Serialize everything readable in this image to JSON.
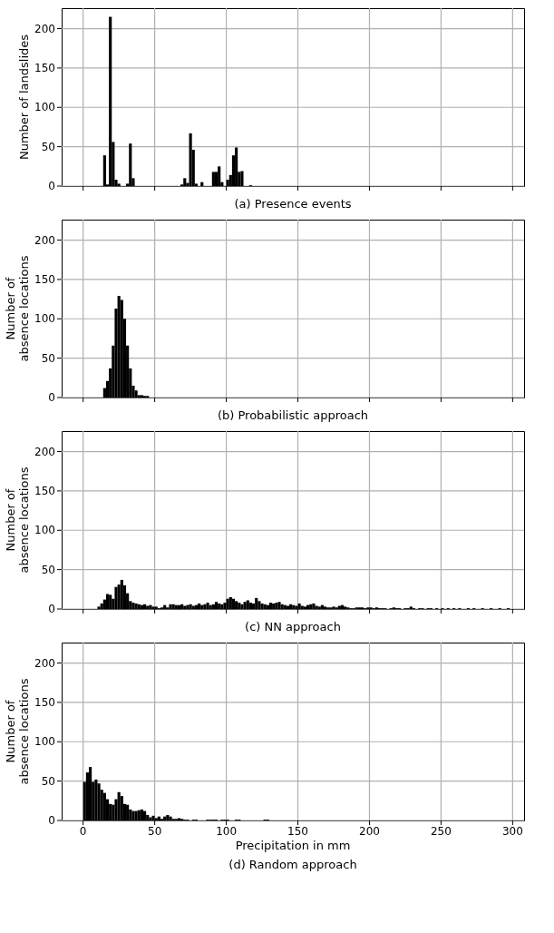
{
  "chart_data": [
    {
      "type": "histogram",
      "title": "(a) Presence events",
      "ylabel": "Number of landslides",
      "color": "#000000",
      "xlim": [
        -15,
        308
      ],
      "xticks": [
        0,
        50,
        100,
        150,
        200,
        250,
        300
      ],
      "ylim": [
        0,
        226
      ],
      "yticks": [
        0,
        50,
        100,
        150,
        200
      ],
      "grid": true,
      "tick_labels": "y",
      "bins": [
        14,
        16,
        18,
        20,
        22,
        24,
        26,
        28,
        30,
        32,
        34,
        36,
        38,
        40,
        42,
        44,
        46,
        48,
        50,
        52,
        54,
        56,
        58,
        60,
        62,
        64,
        66,
        68,
        70,
        72,
        74,
        76,
        78,
        80,
        82,
        84,
        86,
        88,
        90,
        92,
        94,
        96,
        98,
        100,
        102,
        104,
        106,
        108,
        110,
        112,
        114,
        116,
        118,
        120
      ],
      "values": [
        39,
        2,
        215,
        56,
        8,
        3,
        0,
        0,
        3,
        54,
        10,
        0,
        0,
        0,
        0,
        0,
        0,
        0,
        0,
        0,
        0,
        0,
        0,
        0,
        0,
        0,
        0,
        2,
        10,
        4,
        67,
        46,
        3,
        0,
        5,
        0,
        0,
        0,
        18,
        18,
        25,
        5,
        0,
        8,
        14,
        39,
        49,
        18,
        19,
        0,
        0,
        1,
        0
      ]
    },
    {
      "type": "histogram",
      "title": "(b) Probabilistic approach",
      "ylabel": "Number of\nabsence locations",
      "color": "#000000",
      "xlim": [
        -15,
        308
      ],
      "xticks": [
        0,
        50,
        100,
        150,
        200,
        250,
        300
      ],
      "ylim": [
        0,
        226
      ],
      "yticks": [
        0,
        50,
        100,
        150,
        200
      ],
      "grid": true,
      "tick_labels": "y",
      "bins": [
        14,
        16,
        18,
        20,
        22,
        24,
        26,
        28,
        30,
        32,
        34,
        36,
        38,
        40,
        42,
        44,
        46
      ],
      "values": [
        12,
        21,
        37,
        66,
        113,
        129,
        124,
        100,
        66,
        37,
        15,
        9,
        3,
        3,
        2,
        2
      ]
    },
    {
      "type": "histogram",
      "title": "(c) NN approach",
      "ylabel": "Number of\nabsence locations",
      "color": "#000000",
      "xlim": [
        -15,
        308
      ],
      "xticks": [
        0,
        50,
        100,
        150,
        200,
        250,
        300
      ],
      "ylim": [
        0,
        226
      ],
      "yticks": [
        0,
        50,
        100,
        150,
        200
      ],
      "grid": true,
      "tick_labels": "y",
      "bins": [
        10,
        12,
        14,
        16,
        18,
        20,
        22,
        24,
        26,
        28,
        30,
        32,
        34,
        36,
        38,
        40,
        42,
        44,
        46,
        48,
        50,
        52,
        54,
        56,
        58,
        60,
        62,
        64,
        66,
        68,
        70,
        72,
        74,
        76,
        78,
        80,
        82,
        84,
        86,
        88,
        90,
        92,
        94,
        96,
        98,
        100,
        102,
        104,
        106,
        108,
        110,
        112,
        114,
        116,
        118,
        120,
        122,
        124,
        126,
        128,
        130,
        132,
        134,
        136,
        138,
        140,
        142,
        144,
        146,
        148,
        150,
        152,
        154,
        156,
        158,
        160,
        162,
        164,
        166,
        168,
        170,
        172,
        174,
        176,
        178,
        180,
        182,
        184,
        186,
        188,
        190,
        192,
        194,
        196,
        198,
        200,
        202,
        204,
        206,
        208,
        210,
        212,
        214,
        216,
        218,
        220,
        222,
        224,
        226,
        228,
        230,
        232,
        234,
        236,
        238,
        240,
        242,
        244,
        246,
        248,
        250,
        252,
        254,
        256,
        258,
        260,
        262,
        264,
        266,
        268,
        270,
        272,
        274,
        276,
        278,
        280,
        282,
        284,
        286,
        288,
        290,
        292,
        294,
        296,
        298,
        300
      ],
      "values": [
        3,
        7,
        12,
        19,
        18,
        13,
        28,
        31,
        37,
        30,
        20,
        10,
        8,
        7,
        6,
        5,
        6,
        4,
        5,
        3,
        3,
        1,
        2,
        5,
        2,
        6,
        6,
        5,
        5,
        6,
        4,
        5,
        6,
        4,
        5,
        7,
        5,
        6,
        8,
        5,
        6,
        9,
        7,
        6,
        8,
        13,
        15,
        13,
        10,
        8,
        6,
        9,
        11,
        8,
        7,
        14,
        10,
        7,
        6,
        5,
        8,
        7,
        8,
        9,
        6,
        5,
        4,
        6,
        5,
        4,
        7,
        4,
        3,
        5,
        6,
        7,
        4,
        3,
        5,
        3,
        2,
        2,
        3,
        2,
        4,
        5,
        3,
        2,
        1,
        1,
        2,
        2,
        2,
        1,
        2,
        2,
        1,
        2,
        1,
        1,
        1,
        0,
        1,
        2,
        1,
        1,
        0,
        1,
        1,
        3,
        1,
        0,
        1,
        1,
        0,
        1,
        1,
        0,
        1,
        0,
        1,
        0,
        1,
        0,
        1,
        0,
        1,
        0,
        0,
        1,
        0,
        1,
        0,
        0,
        1,
        0,
        0,
        1,
        0,
        0,
        1,
        0,
        0,
        1,
        0
      ]
    },
    {
      "type": "histogram",
      "title": "(d) Random approach",
      "xlabel": "Precipitation in mm",
      "ylabel": "Number of\nabsence locations",
      "color": "#000000",
      "xlim": [
        -15,
        308
      ],
      "xticks": [
        0,
        50,
        100,
        150,
        200,
        250,
        300
      ],
      "ylim": [
        0,
        226
      ],
      "yticks": [
        0,
        50,
        100,
        150,
        200
      ],
      "grid": true,
      "bins": [
        0,
        2,
        4,
        6,
        8,
        10,
        12,
        14,
        16,
        18,
        20,
        22,
        24,
        26,
        28,
        30,
        32,
        34,
        36,
        38,
        40,
        42,
        44,
        46,
        48,
        50,
        52,
        54,
        56,
        58,
        60,
        62,
        64,
        66,
        68,
        70,
        72,
        74,
        76,
        78,
        80,
        82,
        84,
        86,
        88,
        90,
        92,
        94,
        96,
        98,
        100,
        102,
        104,
        106,
        108,
        110,
        112,
        114,
        116,
        118,
        120,
        122,
        124,
        126,
        128,
        130,
        132,
        134,
        136,
        138,
        140
      ],
      "values": [
        49,
        61,
        68,
        49,
        52,
        47,
        39,
        35,
        27,
        21,
        20,
        27,
        36,
        31,
        21,
        20,
        14,
        12,
        12,
        13,
        14,
        12,
        7,
        4,
        6,
        3,
        5,
        2,
        5,
        7,
        5,
        2,
        2,
        3,
        2,
        1,
        1,
        0,
        1,
        1,
        0,
        0,
        0,
        1,
        1,
        1,
        1,
        0,
        1,
        1,
        1,
        0,
        0,
        1,
        1,
        0,
        0,
        0,
        0,
        0,
        0,
        0,
        0,
        1,
        1,
        0,
        0,
        0,
        0,
        0
      ]
    }
  ]
}
